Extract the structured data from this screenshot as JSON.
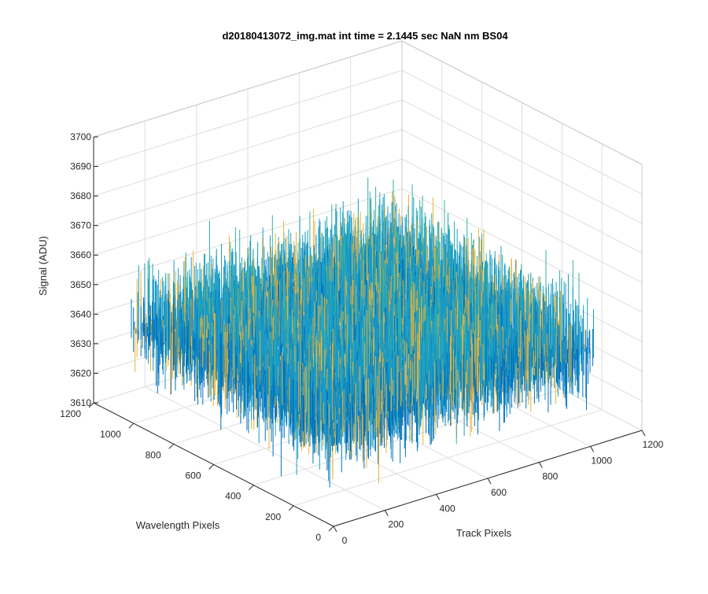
{
  "chart_data": {
    "type": "surface-3d",
    "title": "d20180413072_img.mat int time = 2.1445 sec  NaN nm BS04",
    "xlabel": "Track Pixels",
    "ylabel": "Wavelength Pixels",
    "zlabel": "Signal (ADU)",
    "xlim": [
      0,
      1200
    ],
    "ylim": [
      0,
      1200
    ],
    "zlim": [
      3610,
      3700
    ],
    "x_ticks": [
      "0",
      "200",
      "400",
      "600",
      "800",
      "1000",
      "1200"
    ],
    "y_ticks": [
      "0",
      "200",
      "400",
      "600",
      "800",
      "1000",
      "1200"
    ],
    "z_ticks": [
      "3610",
      "3620",
      "3630",
      "3640",
      "3650",
      "3660",
      "3670",
      "3680",
      "3690",
      "3700"
    ],
    "data_extent": {
      "x": [
        0,
        1024
      ],
      "y": [
        0,
        1024
      ]
    },
    "approx_mean": 3647,
    "approx_range": [
      3615,
      3695
    ],
    "grid": true,
    "colormap": [
      "#0072BD",
      "#1A9CC7",
      "#33B0A6",
      "#6CC08B",
      "#E8B23B"
    ]
  }
}
